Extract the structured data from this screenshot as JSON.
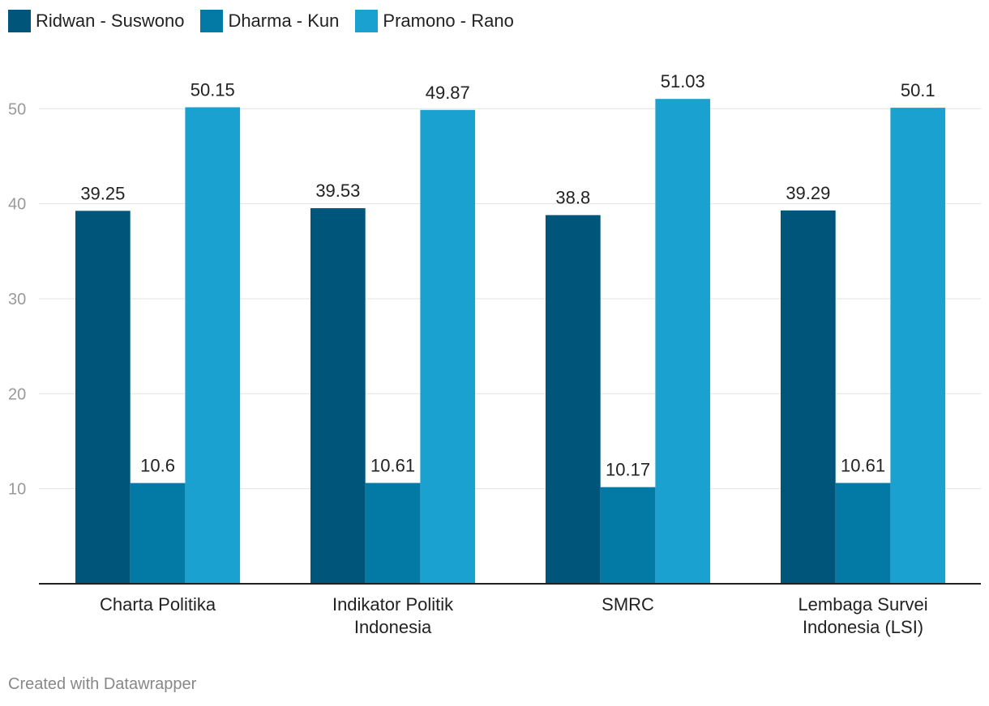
{
  "chart_data": {
    "type": "bar",
    "categories": [
      [
        "Charta Politika"
      ],
      [
        "Indikator Politik",
        "Indonesia"
      ],
      [
        "SMRC"
      ],
      [
        "Lembaga Survei",
        "Indonesia (LSI)"
      ]
    ],
    "series": [
      {
        "name": "Ridwan - Suswono",
        "color": "#00557a",
        "values": [
          39.25,
          39.53,
          38.8,
          39.29
        ],
        "labels": [
          "39.25",
          "39.53",
          "38.8",
          "39.29"
        ]
      },
      {
        "name": "Dharma - Kun",
        "color": "#027aa5",
        "values": [
          10.6,
          10.61,
          10.17,
          10.61
        ],
        "labels": [
          "10.6",
          "10.61",
          "10.17",
          "10.61"
        ]
      },
      {
        "name": "Pramono - Rano",
        "color": "#1ba1cf",
        "values": [
          50.15,
          49.87,
          51.03,
          50.1
        ],
        "labels": [
          "50.15",
          "49.87",
          "51.03",
          "50.1"
        ]
      }
    ],
    "yticks": [
      "10",
      "20",
      "30",
      "40",
      "50"
    ],
    "ylim": [
      0,
      50
    ],
    "grid": true,
    "legend_position": "top-left"
  },
  "credit": "Created with Datawrapper"
}
